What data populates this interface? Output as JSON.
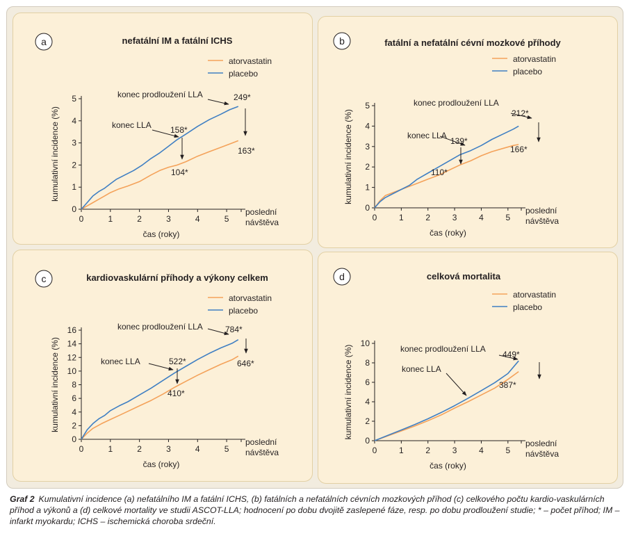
{
  "figure": {
    "caption_label": "Graf 2",
    "caption_text": "Kumulativní incidence (a) nefatálního IM a fatální ICHS, (b) fatálních a nefatálních cévních mozkových příhod (c) celkového počtu kardio-vaskulárních příhod a výkonů a (d) celkové mortality ve studii ASCOT-LLA; hodnocení po dobu dvojitě zaslepené fáze, resp. po dobu prodloužení studie; * – počet příhod; IM – infarkt myokardu; ICHS – ischemická choroba srdeční."
  },
  "colors": {
    "atorvastatin": "#f4a25a",
    "placebo": "#3f7fc3",
    "panel_bg": "#fcf0d8",
    "figure_bg": "#f2ecdf"
  },
  "chart_data": [
    {
      "type": "line",
      "letter": "a",
      "title": "nefatální IM a fatální ICHS",
      "xlabel": "čas (roky)",
      "ylabel": "kumulativní incidence (%)",
      "xticks": [
        0,
        1,
        2,
        3,
        4,
        5
      ],
      "xticklabels": [
        "0",
        "1",
        "2",
        "3",
        "4",
        "5"
      ],
      "xtick_extra_label": [
        "poslední",
        "návštěva"
      ],
      "yticks": [
        0,
        1,
        2,
        3,
        4,
        5
      ],
      "yticklabels": [
        "0",
        "1",
        "2",
        "3",
        "4",
        "5"
      ],
      "xlim": [
        0,
        5.5
      ],
      "ylim": [
        0,
        5
      ],
      "legend": "top-right",
      "series": [
        {
          "name": "atorvastatin",
          "color": "#f4a25a",
          "x": [
            0,
            0.2,
            0.4,
            0.6,
            0.8,
            1.0,
            1.3,
            1.6,
            2.0,
            2.4,
            2.7,
            3.0,
            3.3,
            3.6,
            4.0,
            4.4,
            4.8,
            5.2,
            5.4
          ],
          "y": [
            0,
            0.15,
            0.3,
            0.45,
            0.6,
            0.75,
            0.92,
            1.05,
            1.25,
            1.55,
            1.75,
            1.9,
            2.0,
            2.15,
            2.4,
            2.6,
            2.8,
            3.0,
            3.1
          ]
        },
        {
          "name": "placebo",
          "color": "#3f7fc3",
          "x": [
            0,
            0.2,
            0.4,
            0.6,
            0.8,
            1.0,
            1.2,
            1.5,
            1.8,
            2.1,
            2.4,
            2.7,
            3.0,
            3.3,
            3.6,
            4.0,
            4.4,
            4.8,
            5.1,
            5.4
          ],
          "y": [
            0,
            0.3,
            0.6,
            0.8,
            0.95,
            1.15,
            1.35,
            1.55,
            1.75,
            2.0,
            2.3,
            2.55,
            2.85,
            3.15,
            3.4,
            3.75,
            4.05,
            4.3,
            4.5,
            4.65
          ]
        }
      ],
      "annotations": [
        {
          "text": "konec prodloužení LLA"
        },
        {
          "text": "249*"
        },
        {
          "text": "163*"
        },
        {
          "text": "konec LLA"
        },
        {
          "text": "158*"
        },
        {
          "text": "104*"
        }
      ]
    },
    {
      "type": "line",
      "letter": "b",
      "title": "fatální a nefatální cévní mozkové příhody",
      "xlabel": "čas (roky)",
      "ylabel": "kumulativní incidence (%)",
      "xticks": [
        0,
        1,
        2,
        3,
        4,
        5
      ],
      "xticklabels": [
        "0",
        "1",
        "2",
        "3",
        "4",
        "5"
      ],
      "xtick_extra_label": [
        "poslední",
        "návštěva"
      ],
      "yticks": [
        0,
        1,
        2,
        3,
        4,
        5
      ],
      "yticklabels": [
        "0",
        "1",
        "2",
        "3",
        "4",
        "5"
      ],
      "xlim": [
        0,
        5.5
      ],
      "ylim": [
        0,
        5
      ],
      "legend": "top-right",
      "series": [
        {
          "name": "atorvastatin",
          "color": "#f4a25a",
          "x": [
            0,
            0.2,
            0.4,
            0.7,
            1.0,
            1.3,
            1.6,
            2.0,
            2.4,
            2.8,
            3.2,
            3.6,
            4.0,
            4.4,
            4.8,
            5.2,
            5.4
          ],
          "y": [
            0,
            0.35,
            0.6,
            0.75,
            0.9,
            1.05,
            1.2,
            1.4,
            1.6,
            1.85,
            2.1,
            2.3,
            2.55,
            2.75,
            2.9,
            3.05,
            3.1
          ]
        },
        {
          "name": "placebo",
          "color": "#3f7fc3",
          "x": [
            0,
            0.2,
            0.4,
            0.7,
            1.0,
            1.3,
            1.6,
            2.0,
            2.4,
            2.8,
            3.2,
            3.6,
            4.0,
            4.4,
            4.8,
            5.2,
            5.4
          ],
          "y": [
            0,
            0.3,
            0.5,
            0.7,
            0.9,
            1.1,
            1.4,
            1.7,
            2.0,
            2.3,
            2.6,
            2.8,
            3.05,
            3.35,
            3.6,
            3.85,
            4.0
          ]
        }
      ],
      "annotations": [
        {
          "text": "konec prodloužení LLA"
        },
        {
          "text": "212*"
        },
        {
          "text": "166*"
        },
        {
          "text": "konec LLA"
        },
        {
          "text": "139*"
        },
        {
          "text": "110*"
        }
      ]
    },
    {
      "type": "line",
      "letter": "c",
      "title": "kardiovaskulární příhody a výkony celkem",
      "xlabel": "čas (roky)",
      "ylabel": "kumulativní incidence (%)",
      "xticks": [
        0,
        1,
        2,
        3,
        4,
        5
      ],
      "xticklabels": [
        "0",
        "1",
        "2",
        "3",
        "4",
        "5"
      ],
      "xtick_extra_label": [
        "poslední",
        "návštěva"
      ],
      "yticks": [
        0,
        2,
        4,
        6,
        8,
        10,
        12,
        14,
        16
      ],
      "yticklabels": [
        "0",
        "2",
        "4",
        "6",
        "8",
        "10",
        "12",
        "14",
        "16"
      ],
      "xlim": [
        0,
        5.5
      ],
      "ylim": [
        0,
        16
      ],
      "legend": "top-right",
      "series": [
        {
          "name": "atorvastatin",
          "color": "#f4a25a",
          "x": [
            0,
            0.2,
            0.4,
            0.7,
            1.0,
            1.3,
            1.6,
            2.0,
            2.4,
            2.8,
            3.2,
            3.6,
            4.0,
            4.4,
            4.8,
            5.2,
            5.4
          ],
          "y": [
            0,
            0.9,
            1.6,
            2.3,
            2.9,
            3.5,
            4.1,
            4.9,
            5.7,
            6.6,
            7.6,
            8.5,
            9.4,
            10.2,
            11.0,
            11.7,
            12.2
          ]
        },
        {
          "name": "placebo",
          "color": "#3f7fc3",
          "x": [
            0,
            0.2,
            0.4,
            0.6,
            0.8,
            1.0,
            1.3,
            1.6,
            2.0,
            2.4,
            2.8,
            3.2,
            3.6,
            4.0,
            4.4,
            4.8,
            5.2,
            5.4
          ],
          "y": [
            0,
            1.4,
            2.3,
            3.0,
            3.5,
            4.2,
            4.9,
            5.5,
            6.5,
            7.5,
            8.6,
            9.7,
            10.7,
            11.7,
            12.6,
            13.4,
            14.1,
            14.6
          ]
        }
      ],
      "annotations": [
        {
          "text": "konec prodloužení LLA"
        },
        {
          "text": "784*"
        },
        {
          "text": "646*"
        },
        {
          "text": "konec LLA"
        },
        {
          "text": "522*"
        },
        {
          "text": "410*"
        }
      ]
    },
    {
      "type": "line",
      "letter": "d",
      "title": "celková mortalita",
      "xlabel": "čas (roky)",
      "ylabel": "kumulativní incidence (%)",
      "xticks": [
        0,
        1,
        2,
        3,
        4,
        5
      ],
      "xticklabels": [
        "0",
        "1",
        "2",
        "3",
        "4",
        "5"
      ],
      "xtick_extra_label": [
        "poslední",
        "návštěva"
      ],
      "yticks": [
        0,
        2,
        4,
        6,
        8,
        10
      ],
      "yticklabels": [
        "0",
        "2",
        "4",
        "6",
        "8",
        "10"
      ],
      "xlim": [
        0,
        5.5
      ],
      "ylim": [
        0,
        10
      ],
      "legend": "top-right",
      "series": [
        {
          "name": "atorvastatin",
          "color": "#f4a25a",
          "x": [
            0,
            0.5,
            1.0,
            1.5,
            2.0,
            2.5,
            3.0,
            3.5,
            4.0,
            4.5,
            5.0,
            5.4
          ],
          "y": [
            0,
            0.5,
            1.0,
            1.5,
            2.05,
            2.65,
            3.35,
            4.0,
            4.7,
            5.4,
            6.3,
            7.1
          ]
        },
        {
          "name": "placebo",
          "color": "#3f7fc3",
          "x": [
            0,
            0.5,
            1.0,
            1.5,
            2.0,
            2.5,
            3.0,
            3.5,
            4.0,
            4.5,
            5.0,
            5.4
          ],
          "y": [
            0,
            0.55,
            1.1,
            1.65,
            2.25,
            2.9,
            3.6,
            4.35,
            5.15,
            5.95,
            6.9,
            8.2
          ]
        }
      ],
      "annotations": [
        {
          "text": "konec prodloužení LLA"
        },
        {
          "text": "449*"
        },
        {
          "text": "387*"
        },
        {
          "text": "konec LLA"
        }
      ]
    }
  ]
}
